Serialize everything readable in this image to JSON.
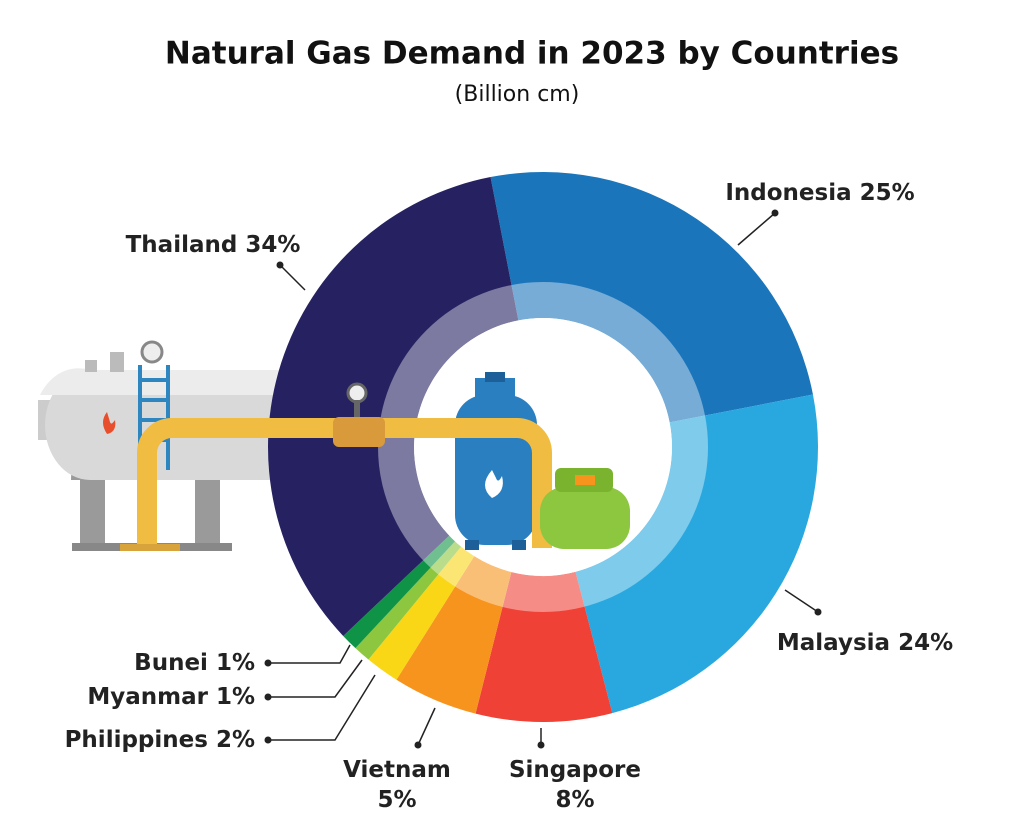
{
  "chart_data": {
    "type": "pie",
    "title": "Natural Gas Demand in 2023 by Countries",
    "subtitle": "(Billion cm)",
    "categories": [
      "Indonesia",
      "Malaysia",
      "Singapore",
      "Vietnam",
      "Philippines",
      "Myanmar",
      "Bunei",
      "Thailand"
    ],
    "values": [
      25,
      24,
      8,
      5,
      2,
      1,
      1,
      34
    ],
    "value_labels": [
      "25%",
      "24%",
      "8%",
      "5%",
      "2%",
      "1%",
      "1%",
      "34%"
    ],
    "colors": [
      "#1b75bb",
      "#29a8e0",
      "#ef4136",
      "#f7941d",
      "#f9d616",
      "#8dc63f",
      "#0f9447",
      "#262262"
    ],
    "donut": true
  }
}
